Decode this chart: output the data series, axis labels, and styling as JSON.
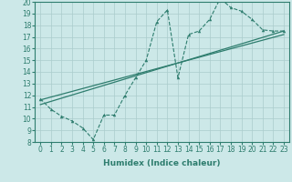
{
  "xlabel": "Humidex (Indice chaleur)",
  "xlim": [
    -0.5,
    23.5
  ],
  "ylim": [
    8,
    20
  ],
  "xticks": [
    0,
    1,
    2,
    3,
    4,
    5,
    6,
    7,
    8,
    9,
    10,
    11,
    12,
    13,
    14,
    15,
    16,
    17,
    18,
    19,
    20,
    21,
    22,
    23
  ],
  "yticks": [
    8,
    9,
    10,
    11,
    12,
    13,
    14,
    15,
    16,
    17,
    18,
    19,
    20
  ],
  "bg_color": "#cce8e8",
  "grid_color": "#aacccc",
  "line_color": "#2e7d6e",
  "series_dashed": {
    "x": [
      0,
      1,
      2,
      3,
      4,
      5,
      6,
      7,
      8,
      9,
      10,
      11,
      12,
      13,
      14,
      15,
      16,
      17,
      18,
      19,
      20,
      21,
      22,
      23
    ],
    "y": [
      11.7,
      10.8,
      10.2,
      9.8,
      9.2,
      8.2,
      10.3,
      10.3,
      12.0,
      13.5,
      15.0,
      18.3,
      19.3,
      13.5,
      17.2,
      17.5,
      18.5,
      20.3,
      19.5,
      19.2,
      18.5,
      17.6,
      17.5,
      17.5
    ]
  },
  "series_line1": {
    "x": [
      0,
      23
    ],
    "y": [
      11.2,
      17.5
    ]
  },
  "series_line2": {
    "x": [
      0,
      23
    ],
    "y": [
      11.6,
      17.2
    ]
  },
  "xlabel_fontsize": 6.5,
  "tick_fontsize": 5.5
}
